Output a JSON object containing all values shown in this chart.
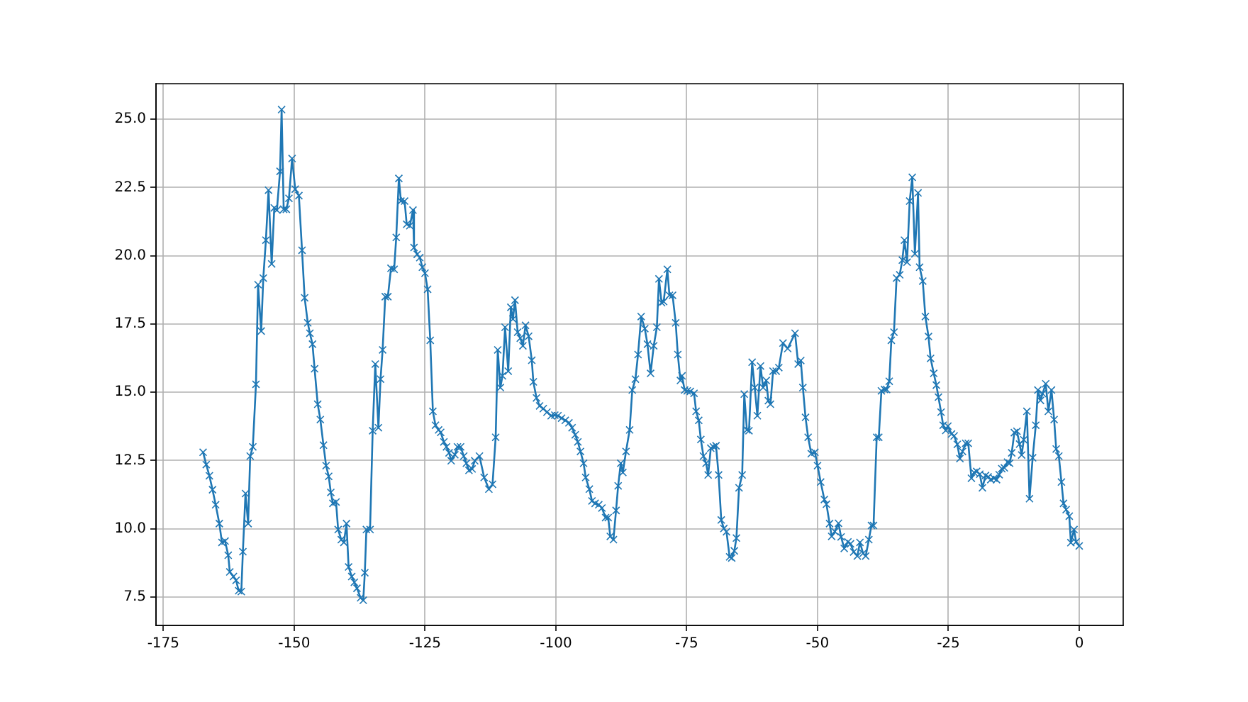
{
  "chart_data": {
    "type": "line",
    "marker": "cross",
    "grid": true,
    "xlim": [
      -176.4,
      8.4
    ],
    "xticks": [
      -175,
      -150,
      -125,
      -100,
      -75,
      -50,
      -25,
      0
    ],
    "ylim": [
      6.46,
      26.3
    ],
    "yticks": [
      7.5,
      {
        "value": 10,
        "label": "10.0"
      },
      12.5,
      {
        "value": 15,
        "label": "15.0"
      },
      17.5,
      {
        "value": 20,
        "label": "20.0"
      },
      22.5,
      {
        "value": 25,
        "label": "25.0"
      }
    ],
    "series": [
      {
        "color": "#1f77b4",
        "x": [
          -167.4,
          -166.8,
          -166.2,
          -165.6,
          -165.0,
          -164.3,
          -163.8,
          -163.2,
          -162.6,
          -162.3,
          -161.6,
          -161.1,
          -160.6,
          -160.1,
          -159.8,
          -159.3,
          -158.8,
          -158.4,
          -157.9,
          -157.3,
          -156.9,
          -156.3,
          -155.9,
          -155.4,
          -154.9,
          -154.3,
          -153.8,
          -153.3,
          -152.7,
          -152.4,
          -152.0,
          -151.5,
          -151.0,
          -150.4,
          -149.8,
          -149.1,
          -148.5,
          -148.0,
          -147.4,
          -147.0,
          -146.5,
          -146.1,
          -145.5,
          -145.0,
          -144.4,
          -143.9,
          -143.4,
          -143.0,
          -142.6,
          -142.0,
          -141.6,
          -141.0,
          -140.5,
          -140.0,
          -139.6,
          -139.0,
          -138.5,
          -138.0,
          -137.3,
          -136.8,
          -136.5,
          -136.2,
          -135.5,
          -135.0,
          -134.5,
          -133.9,
          -133.5,
          -133.1,
          -132.6,
          -132.1,
          -131.5,
          -130.9,
          -130.5,
          -130.0,
          -129.6,
          -128.9,
          -128.5,
          -127.9,
          -127.3,
          -127.1,
          -126.5,
          -126.0,
          -125.5,
          -125.0,
          -124.5,
          -124.0,
          -123.5,
          -123.0,
          -122.4,
          -122.0,
          -121.4,
          -120.9,
          -120.4,
          -120.0,
          -119.3,
          -118.8,
          -118.2,
          -117.6,
          -117.1,
          -116.6,
          -116.0,
          -115.5,
          -114.6,
          -113.7,
          -112.8,
          -112.1,
          -111.5,
          -111.1,
          -110.6,
          -110.2,
          -109.7,
          -109.1,
          -108.6,
          -108.2,
          -107.8,
          -107.3,
          -106.8,
          -106.3,
          -105.8,
          -105.2,
          -104.6,
          -104.3,
          -103.7,
          -103.1,
          -102.4,
          -101.7,
          -100.9,
          -100.2,
          -99.6,
          -98.9,
          -98.2,
          -97.5,
          -96.9,
          -96.3,
          -95.8,
          -95.3,
          -94.7,
          -94.3,
          -93.6,
          -93.1,
          -92.5,
          -91.8,
          -91.2,
          -90.5,
          -90.0,
          -89.6,
          -89.0,
          -88.5,
          -88.1,
          -87.6,
          -87.2,
          -86.6,
          -85.9,
          -85.4,
          -84.8,
          -84.3,
          -83.7,
          -83.0,
          -82.5,
          -81.9,
          -81.3,
          -80.7,
          -80.3,
          -79.8,
          -79.4,
          -78.7,
          -78.3,
          -77.7,
          -77.1,
          -76.7,
          -76.2,
          -75.9,
          -75.4,
          -74.9,
          -74.3,
          -73.6,
          -73.2,
          -72.7,
          -72.3,
          -71.8,
          -71.3,
          -70.9,
          -70.4,
          -69.9,
          -69.4,
          -68.9,
          -68.4,
          -67.9,
          -67.4,
          -66.8,
          -66.4,
          -65.9,
          -65.5,
          -65.0,
          -64.4,
          -64.0,
          -63.5,
          -63.1,
          -62.5,
          -62.0,
          -61.5,
          -60.9,
          -60.4,
          -59.8,
          -59.4,
          -59.0,
          -58.5,
          -57.9,
          -57.4,
          -56.6,
          -55.7,
          -54.3,
          -53.7,
          -53.2,
          -52.8,
          -52.3,
          -51.8,
          -51.2,
          -50.5,
          -50.0,
          -49.4,
          -48.7,
          -48.3,
          -47.7,
          -47.3,
          -46.7,
          -46.0,
          -45.5,
          -44.9,
          -44.2,
          -43.7,
          -43.1,
          -42.4,
          -41.9,
          -41.3,
          -40.8,
          -40.2,
          -39.7,
          -39.3,
          -38.7,
          -38.3,
          -37.8,
          -37.2,
          -36.8,
          -36.3,
          -35.9,
          -35.4,
          -34.9,
          -34.3,
          -33.8,
          -33.4,
          -32.9,
          -32.4,
          -31.9,
          -31.4,
          -30.8,
          -30.5,
          -29.9,
          -29.4,
          -28.8,
          -28.4,
          -27.8,
          -27.3,
          -26.9,
          -26.4,
          -26.0,
          -25.5,
          -25.1,
          -24.4,
          -23.9,
          -23.3,
          -22.8,
          -22.3,
          -21.7,
          -21.2,
          -20.6,
          -20.1,
          -19.6,
          -19.0,
          -18.5,
          -17.9,
          -17.4,
          -16.9,
          -16.3,
          -15.8,
          -15.3,
          -14.8,
          -14.3,
          -13.7,
          -13.3,
          -12.9,
          -12.4,
          -11.9,
          -11.4,
          -11.0,
          -10.6,
          -10.0,
          -9.5,
          -8.9,
          -8.3,
          -7.9,
          -7.4,
          -7.0,
          -6.4,
          -5.9,
          -5.3,
          -4.8,
          -4.4,
          -3.9,
          -3.4,
          -3.0,
          -2.5,
          -1.9,
          -1.6,
          -1.0,
          -0.6,
          0
        ],
        "values": [
          12.8,
          12.35,
          11.94,
          11.43,
          10.88,
          10.19,
          9.5,
          9.55,
          9.03,
          8.42,
          8.25,
          8.11,
          7.73,
          7.7,
          9.16,
          11.29,
          10.19,
          12.66,
          13.0,
          15.29,
          18.94,
          17.24,
          19.18,
          20.57,
          22.4,
          19.7,
          21.75,
          21.67,
          23.09,
          25.35,
          21.7,
          21.7,
          22.1,
          23.56,
          22.44,
          22.2,
          20.2,
          18.46,
          17.54,
          17.16,
          16.76,
          15.86,
          14.56,
          14.0,
          13.06,
          12.31,
          11.92,
          11.33,
          10.93,
          10.98,
          9.97,
          9.6,
          9.5,
          10.19,
          8.6,
          8.25,
          8.04,
          7.82,
          7.47,
          7.38,
          8.39,
          9.97,
          9.97,
          13.59,
          16.03,
          13.7,
          15.48,
          16.55,
          18.5,
          18.5,
          19.54,
          19.5,
          20.67,
          22.83,
          22.0,
          22.0,
          21.15,
          21.1,
          21.67,
          20.3,
          20.05,
          19.93,
          19.58,
          19.36,
          18.77,
          16.9,
          14.3,
          13.79,
          13.62,
          13.53,
          13.18,
          13.0,
          12.78,
          12.49,
          12.71,
          13.0,
          13.0,
          12.66,
          12.4,
          12.14,
          12.19,
          12.49,
          12.66,
          11.88,
          11.45,
          11.63,
          13.35,
          16.55,
          15.17,
          15.6,
          17.38,
          15.77,
          18.11,
          17.68,
          18.37,
          17.2,
          16.98,
          16.7,
          17.45,
          17.05,
          16.17,
          15.38,
          14.79,
          14.5,
          14.4,
          14.27,
          14.14,
          14.16,
          14.14,
          14.05,
          13.97,
          13.88,
          13.7,
          13.44,
          13.18,
          12.83,
          12.4,
          11.88,
          11.45,
          11.02,
          10.93,
          10.88,
          10.76,
          10.41,
          10.41,
          9.72,
          9.6,
          10.67,
          11.57,
          12.4,
          12.06,
          12.83,
          13.62,
          15.08,
          15.48,
          16.38,
          17.77,
          17.33,
          16.76,
          15.69,
          16.7,
          17.38,
          19.15,
          18.28,
          18.32,
          19.5,
          18.55,
          18.55,
          17.54,
          16.38,
          15.43,
          15.6,
          15.08,
          15.05,
          15.03,
          14.96,
          14.3,
          13.97,
          13.27,
          12.66,
          12.4,
          11.97,
          12.95,
          13.0,
          13.04,
          11.97,
          10.32,
          10.01,
          9.89,
          8.97,
          8.93,
          9.19,
          9.66,
          11.5,
          11.97,
          14.93,
          13.62,
          13.59,
          16.1,
          15.17,
          14.14,
          15.96,
          15.17,
          15.43,
          14.69,
          14.56,
          15.77,
          15.77,
          15.9,
          16.8,
          16.6,
          17.16,
          16.03,
          16.16,
          15.17,
          14.08,
          13.35,
          12.75,
          12.8,
          12.31,
          11.71,
          11.07,
          10.9,
          10.19,
          9.72,
          9.9,
          10.2,
          9.7,
          9.28,
          9.52,
          9.45,
          9.15,
          9.0,
          9.5,
          9.1,
          9.0,
          9.6,
          10.12,
          10.12,
          13.35,
          13.35,
          15.05,
          15.1,
          15.1,
          15.4,
          16.9,
          17.2,
          19.18,
          19.3,
          19.84,
          20.57,
          19.76,
          22.0,
          22.87,
          20.07,
          22.3,
          19.58,
          19.07,
          17.77,
          17.04,
          16.24,
          15.69,
          15.26,
          14.82,
          14.27,
          13.79,
          13.6,
          13.76,
          13.47,
          13.4,
          13.09,
          12.57,
          12.83,
          13.13,
          13.13,
          11.85,
          12.06,
          12.1,
          12.0,
          11.5,
          11.95,
          11.9,
          11.8,
          11.85,
          11.8,
          11.98,
          12.2,
          12.23,
          12.44,
          12.4,
          12.78,
          13.52,
          13.57,
          13.1,
          12.7,
          13.26,
          14.3,
          11.1,
          12.6,
          13.79,
          15.08,
          14.7,
          14.95,
          15.31,
          14.3,
          15.08,
          14.0,
          12.92,
          12.66,
          11.71,
          10.93,
          10.7,
          10.46,
          9.49,
          9.97,
          9.52,
          9.37
        ]
      }
    ]
  }
}
